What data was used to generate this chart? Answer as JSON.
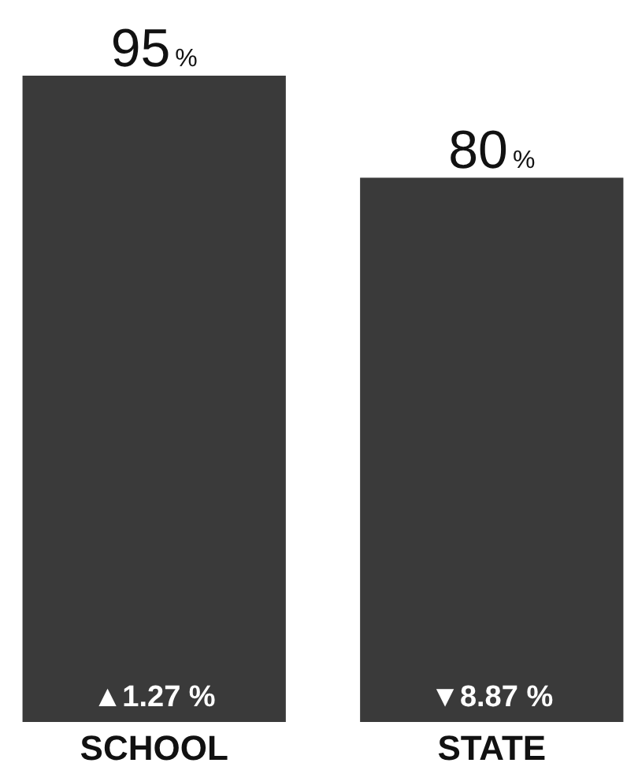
{
  "chart_data": {
    "type": "bar",
    "categories": [
      "SCHOOL",
      "STATE"
    ],
    "values": [
      95,
      80
    ],
    "color": "#3a3a3a",
    "value_labels": [
      "95%",
      "80%"
    ],
    "annotations": [
      "▲1.27 %",
      "▼8.87 %"
    ],
    "grid": false
  }
}
